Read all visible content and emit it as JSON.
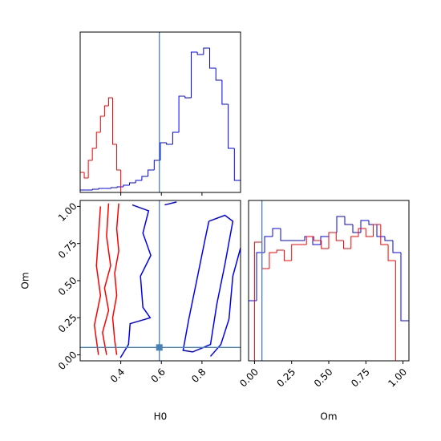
{
  "chart_data": {
    "type": "corner",
    "truth": {
      "H0": 0.59,
      "Om": 0.05
    },
    "truth_color": "#4682b4",
    "axes": {
      "H0": {
        "label": "H0",
        "lim": [
          0.2,
          0.99
        ],
        "ticks": [
          0.4,
          0.6,
          0.8
        ]
      },
      "Om": {
        "label": "Om",
        "lim": [
          -0.04,
          1.04
        ],
        "ticks": [
          {
            "value": 0,
            "label": "0.00"
          },
          {
            "value": 0.25,
            "label": "0.25"
          },
          {
            "value": 0.5,
            "label": "0.50"
          },
          {
            "value": 0.75,
            "label": "0.75"
          },
          {
            "value": 1,
            "label": "1.00"
          }
        ]
      }
    },
    "histograms": {
      "H0": {
        "ylim": [
          0,
          200
        ],
        "series": [
          {
            "color": "blue",
            "bins": [
              0.2,
              0.2304,
              0.2608,
              0.2912,
              0.3215,
              0.3519,
              0.3823,
              0.4127,
              0.4431,
              0.4735,
              0.5038,
              0.5342,
              0.5646,
              0.595,
              0.6254,
              0.6558,
              0.6862,
              0.7165,
              0.7469,
              0.7773,
              0.8077,
              0.8381,
              0.8685,
              0.8988,
              0.9292,
              0.9596,
              0.99
            ],
            "values": [
              3,
              3,
              4,
              5,
              5,
              6,
              7,
              9,
              12,
              15,
              20,
              28,
              40,
              62,
              60,
              75,
              120,
              118,
              175,
              172,
              180,
              155,
              140,
              110,
              55,
              15
            ]
          },
          {
            "color": "red",
            "bins": [
              0.2,
              0.22,
              0.24,
              0.26,
              0.28,
              0.3,
              0.32,
              0.34,
              0.36,
              0.38,
              0.4,
              0.42
            ],
            "values": [
              25,
              18,
              40,
              55,
              75,
              95,
              108,
              118,
              60,
              28,
              0
            ]
          }
        ]
      },
      "Om": {
        "ylim": [
          0,
          200
        ],
        "series": [
          {
            "color": "blue",
            "bins": [
              -0.04,
              0.014,
              0.068,
              0.122,
              0.176,
              0.23,
              0.284,
              0.338,
              0.392,
              0.446,
              0.5,
              0.554,
              0.608,
              0.662,
              0.716,
              0.77,
              0.824,
              0.878,
              0.932,
              0.986,
              1.04
            ],
            "values": [
              75,
              135,
              155,
              165,
              150,
              150,
              150,
              155,
              145,
              155,
              160,
              180,
              170,
              160,
              175,
              170,
              155,
              150,
              135,
              50
            ]
          },
          {
            "color": "red",
            "bins": [
              0,
              0.05,
              0.1,
              0.15,
              0.2,
              0.25,
              0.3,
              0.35,
              0.4,
              0.45,
              0.5,
              0.55,
              0.6,
              0.65,
              0.7,
              0.75,
              0.8,
              0.85,
              0.9,
              0.95,
              1
            ],
            "values": [
              148,
              115,
              135,
              138,
              125,
              145,
              145,
              155,
              150,
              140,
              160,
              150,
              140,
              155,
              165,
              155,
              170,
              145,
              125,
              0
            ]
          }
        ]
      }
    },
    "contours": [
      {
        "color": "red",
        "x": [
          0.39,
          0.38,
          0.39,
          0.37,
          0.38,
          0.36,
          0.37,
          0.38
        ],
        "y": [
          1.02,
          0.85,
          0.7,
          0.55,
          0.4,
          0.25,
          0.1,
          0.0
        ]
      },
      {
        "color": "red",
        "x": [
          0.34,
          0.33,
          0.35,
          0.32,
          0.34,
          0.31,
          0.33
        ],
        "y": [
          1.02,
          0.8,
          0.6,
          0.45,
          0.3,
          0.15,
          0.0
        ]
      },
      {
        "color": "red",
        "x": [
          0.3,
          0.29,
          0.28,
          0.3,
          0.27,
          0.29
        ],
        "y": [
          1.0,
          0.8,
          0.6,
          0.4,
          0.2,
          0.0
        ]
      },
      {
        "color": "blue",
        "x": [
          0.457,
          0.537,
          0.509,
          0.548,
          0.497,
          0.509,
          0.545,
          0.446,
          0.438,
          0.398
        ],
        "y": [
          1.01,
          0.97,
          0.82,
          0.67,
          0.53,
          0.32,
          0.25,
          0.21,
          0.07,
          -0.02
        ]
      },
      {
        "color": "blue",
        "x": [
          0.834,
          0.913,
          0.952,
          0.913,
          0.873,
          0.842,
          0.754,
          0.707,
          0.735,
          0.774,
          0.814,
          0.834
        ],
        "y": [
          0.9,
          0.94,
          0.9,
          0.61,
          0.34,
          0.07,
          0.02,
          0.03,
          0.24,
          0.5,
          0.77,
          0.9
        ]
      },
      {
        "color": "blue",
        "x": [
          0.99,
          0.952,
          0.933,
          0.893,
          0.842
        ],
        "y": [
          0.72,
          0.53,
          0.24,
          0.07,
          -0.01
        ]
      },
      {
        "color": "blue",
        "x": [
          0.616,
          0.675
        ],
        "y": [
          1.01,
          1.03
        ]
      }
    ]
  }
}
